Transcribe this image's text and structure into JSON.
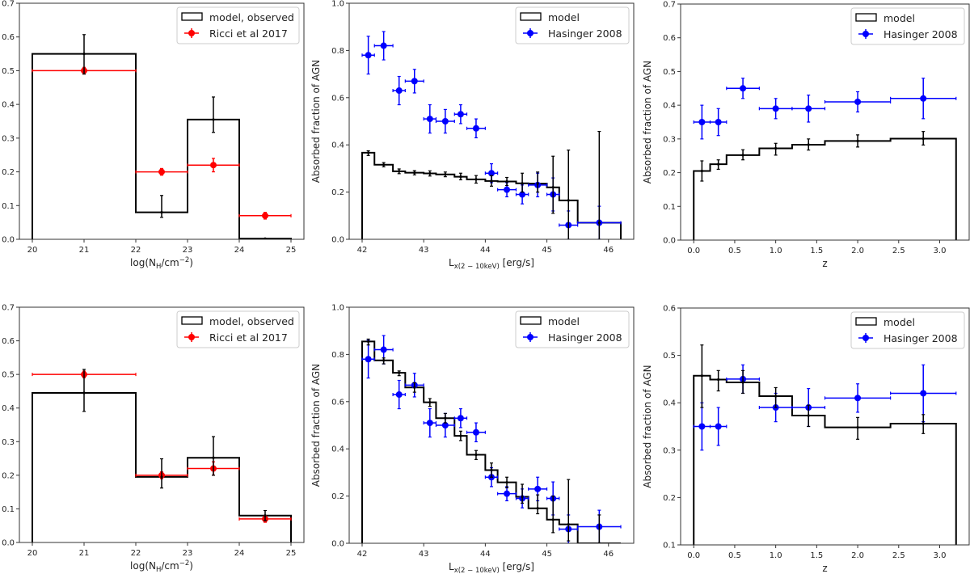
{
  "chart_data": [
    {
      "type": "bar",
      "id": "nh-top",
      "xlabel_parts": [
        [
          "log(N",
          "n"
        ],
        [
          "H",
          "sub"
        ],
        [
          "/cm",
          "n"
        ],
        [
          "−2",
          "sup"
        ],
        [
          ")",
          "n"
        ]
      ],
      "ylabel": "",
      "xlim": [
        19.75,
        25.25
      ],
      "ylim": [
        0,
        0.7
      ],
      "xticks": [
        20,
        21,
        22,
        23,
        24,
        25
      ],
      "xtick_labels": [
        "20",
        "21",
        "22",
        "23",
        "24",
        "25"
      ],
      "yticks": [
        0,
        0.1,
        0.2,
        0.3,
        0.4,
        0.5,
        0.6,
        0.7
      ],
      "ytick_labels": [
        "0.0",
        "0.1",
        "0.2",
        "0.3",
        "0.4",
        "0.5",
        "0.6",
        "0.7"
      ],
      "legend": {
        "placement": "top-right",
        "entries": [
          "model, observed",
          "Ricci et al 2017"
        ]
      },
      "model": {
        "name": "model, observed",
        "edges": [
          20,
          22,
          23,
          24,
          25
        ],
        "values": [
          0.55,
          0.08,
          0.355,
          0.002
        ],
        "err_x": [
          21,
          22.5,
          23.5,
          24.5
        ],
        "err_lo": [
          0.49,
          0.065,
          0.317,
          0.0
        ],
        "err_hi": [
          0.607,
          0.13,
          0.422,
          0.003
        ]
      },
      "obs": {
        "name": "Ricci et al 2017",
        "color": "#ff0000",
        "x": [
          21,
          22.5,
          23.5,
          24.5
        ],
        "xerr": [
          1,
          0.5,
          0.5,
          0.5
        ],
        "y": [
          0.5,
          0.2,
          0.22,
          0.07
        ],
        "yerr": [
          0.01,
          0.01,
          0.02,
          0.01
        ]
      }
    },
    {
      "type": "bar",
      "id": "lx-top",
      "xlabel_parts": [
        [
          "L",
          "n"
        ],
        [
          "x(2 − 10keV)",
          "sub"
        ],
        [
          " [erg/s]",
          "n"
        ]
      ],
      "ylabel": "Absorbed fraction of AGN",
      "xlim": [
        41.79,
        46.41
      ],
      "ylim": [
        0,
        1.0
      ],
      "xticks": [
        42,
        43,
        44,
        45,
        46
      ],
      "xtick_labels": [
        "42",
        "43",
        "44",
        "45",
        "46"
      ],
      "yticks": [
        0,
        0.2,
        0.4,
        0.6,
        0.8,
        1.0
      ],
      "ytick_labels": [
        "0.0",
        "0.2",
        "0.4",
        "0.6",
        "0.8",
        "1.0"
      ],
      "legend": {
        "placement": "top-right",
        "entries": [
          "model",
          "Hasinger 2008"
        ]
      },
      "model": {
        "name": "model",
        "edges": [
          42,
          42.2,
          42.5,
          42.7,
          43,
          43.2,
          43.5,
          43.7,
          44,
          44.2,
          44.5,
          44.7,
          45,
          45.2,
          45.5,
          46.2
        ],
        "values": [
          0.367,
          0.316,
          0.288,
          0.282,
          0.279,
          0.275,
          0.265,
          0.254,
          0.247,
          0.245,
          0.237,
          0.236,
          0.22,
          0.165,
          0.07
        ],
        "err_x": [
          42.1,
          42.35,
          42.6,
          42.85,
          43.1,
          43.35,
          43.6,
          43.85,
          44.1,
          44.35,
          44.6,
          44.85,
          45.1,
          45.35,
          45.85
        ],
        "err_lo": [
          0.355,
          0.307,
          0.278,
          0.273,
          0.268,
          0.265,
          0.252,
          0.238,
          0.225,
          0.228,
          0.2,
          0.2,
          0.11,
          0,
          0
        ],
        "err_hi": [
          0.375,
          0.325,
          0.298,
          0.291,
          0.29,
          0.285,
          0.28,
          0.27,
          0.27,
          0.262,
          0.28,
          0.285,
          0.352,
          0.378,
          0.457
        ]
      },
      "obs": {
        "name": "Hasinger 2008",
        "color": "#0000ff",
        "x": [
          42.1,
          42.35,
          42.6,
          42.85,
          43.1,
          43.35,
          43.6,
          43.85,
          44.1,
          44.35,
          44.6,
          44.85,
          45.1,
          45.35,
          45.85
        ],
        "xerr": [
          0.1,
          0.15,
          0.1,
          0.15,
          0.1,
          0.15,
          0.1,
          0.15,
          0.1,
          0.15,
          0.1,
          0.15,
          0.1,
          0.15,
          0.35
        ],
        "y": [
          0.78,
          0.82,
          0.63,
          0.67,
          0.51,
          0.5,
          0.53,
          0.47,
          0.28,
          0.21,
          0.19,
          0.23,
          0.19,
          0.06,
          0.07
        ],
        "yerr": [
          0.08,
          0.06,
          0.06,
          0.05,
          0.06,
          0.05,
          0.04,
          0.04,
          0.04,
          0.03,
          0.04,
          0.05,
          0.07,
          0.06,
          0.07
        ]
      }
    },
    {
      "type": "bar",
      "id": "z-top",
      "xlabel_parts": [
        [
          "z",
          "n"
        ]
      ],
      "ylabel": "Absorbed fraction of AGN",
      "xlim": [
        -0.16,
        3.36
      ],
      "ylim": [
        0,
        0.7
      ],
      "xticks": [
        0,
        0.5,
        1,
        1.5,
        2,
        2.5,
        3
      ],
      "xtick_labels": [
        "0.0",
        "0.5",
        "1.0",
        "1.5",
        "2.0",
        "2.5",
        "3.0"
      ],
      "yticks": [
        0,
        0.1,
        0.2,
        0.3,
        0.4,
        0.5,
        0.6,
        0.7
      ],
      "ytick_labels": [
        "0.0",
        "0.1",
        "0.2",
        "0.3",
        "0.4",
        "0.5",
        "0.6",
        "0.7"
      ],
      "legend": {
        "placement": "top-right",
        "entries": [
          "model",
          "Hasinger 2008"
        ]
      },
      "model": {
        "name": "model",
        "edges": [
          0,
          0.2,
          0.4,
          0.8,
          1.2,
          1.6,
          2.4,
          3.2
        ],
        "values": [
          0.205,
          0.225,
          0.252,
          0.272,
          0.283,
          0.294,
          0.301
        ],
        "err_x": [
          0.1,
          0.3,
          0.6,
          1.0,
          1.4,
          2.0,
          2.8
        ],
        "err_lo": [
          0.175,
          0.21,
          0.238,
          0.252,
          0.267,
          0.276,
          0.282
        ],
        "err_hi": [
          0.235,
          0.238,
          0.268,
          0.287,
          0.3,
          0.312,
          0.322
        ]
      },
      "obs": {
        "name": "Hasinger 2008",
        "color": "#0000ff",
        "x": [
          0.1,
          0.3,
          0.6,
          1.0,
          1.4,
          2.0,
          2.8
        ],
        "xerr": [
          0.1,
          0.1,
          0.2,
          0.2,
          0.2,
          0.4,
          0.4
        ],
        "y": [
          0.35,
          0.35,
          0.45,
          0.39,
          0.39,
          0.41,
          0.42
        ],
        "yerr": [
          0.05,
          0.04,
          0.03,
          0.03,
          0.04,
          0.03,
          0.06
        ]
      }
    },
    {
      "type": "bar",
      "id": "nh-bottom",
      "xlabel_parts": [
        [
          "log(N",
          "n"
        ],
        [
          "H",
          "sub"
        ],
        [
          "/cm",
          "n"
        ],
        [
          "−2",
          "sup"
        ],
        [
          ")",
          "n"
        ]
      ],
      "ylabel": "",
      "xlim": [
        19.75,
        25.25
      ],
      "ylim": [
        0,
        0.7
      ],
      "xticks": [
        20,
        21,
        22,
        23,
        24,
        25
      ],
      "xtick_labels": [
        "20",
        "21",
        "22",
        "23",
        "24",
        "25"
      ],
      "yticks": [
        0,
        0.1,
        0.2,
        0.3,
        0.4,
        0.5,
        0.6,
        0.7
      ],
      "ytick_labels": [
        "0.0",
        "0.1",
        "0.2",
        "0.3",
        "0.4",
        "0.5",
        "0.6",
        "0.7"
      ],
      "legend": {
        "placement": "top-right",
        "entries": [
          "model, observed",
          "Ricci et al 2017"
        ]
      },
      "model": {
        "name": "model, observed",
        "edges": [
          20,
          22,
          23,
          24,
          25
        ],
        "values": [
          0.445,
          0.195,
          0.252,
          0.08
        ],
        "err_x": [
          21,
          22.5,
          23.5,
          24.5
        ],
        "err_lo": [
          0.39,
          0.162,
          0.2,
          0.065
        ],
        "err_hi": [
          0.515,
          0.249,
          0.315,
          0.095
        ]
      },
      "obs": {
        "name": "Ricci et al 2017",
        "color": "#ff0000",
        "x": [
          21,
          22.5,
          23.5,
          24.5
        ],
        "xerr": [
          1,
          0.5,
          0.5,
          0.5
        ],
        "y": [
          0.5,
          0.2,
          0.22,
          0.07
        ],
        "yerr": [
          0.01,
          0.01,
          0.02,
          0.01
        ]
      }
    },
    {
      "type": "bar",
      "id": "lx-bottom",
      "xlabel_parts": [
        [
          "L",
          "n"
        ],
        [
          "x(2 − 10keV)",
          "sub"
        ],
        [
          " [erg/s]",
          "n"
        ]
      ],
      "ylabel": "Absorbed fraction of AGN",
      "xlim": [
        41.79,
        46.41
      ],
      "ylim": [
        0,
        1.0
      ],
      "xticks": [
        42,
        43,
        44,
        45,
        46
      ],
      "xtick_labels": [
        "42",
        "43",
        "44",
        "45",
        "46"
      ],
      "yticks": [
        0,
        0.2,
        0.4,
        0.6,
        0.8,
        1.0
      ],
      "ytick_labels": [
        "0.0",
        "0.2",
        "0.4",
        "0.6",
        "0.8",
        "1.0"
      ],
      "legend": {
        "placement": "top-right",
        "entries": [
          "model",
          "Hasinger 2008"
        ]
      },
      "model": {
        "name": "model",
        "edges": [
          42,
          42.2,
          42.5,
          42.7,
          43,
          43.2,
          43.5,
          43.7,
          44,
          44.2,
          44.5,
          44.7,
          45,
          45.2,
          45.5,
          46.2
        ],
        "values": [
          0.855,
          0.775,
          0.722,
          0.66,
          0.597,
          0.53,
          0.455,
          0.375,
          0.31,
          0.258,
          0.197,
          0.148,
          0.1,
          0.08,
          0.0
        ],
        "err_x": [
          42.1,
          42.35,
          42.6,
          42.85,
          43.1,
          43.35,
          43.6,
          43.85,
          44.1,
          44.35,
          44.6,
          44.85,
          45.1,
          45.35,
          45.85
        ],
        "err_lo": [
          0.84,
          0.76,
          0.71,
          0.64,
          0.58,
          0.51,
          0.435,
          0.355,
          0.28,
          0.235,
          0.17,
          0.125,
          0.045,
          0.01,
          0
        ],
        "err_hi": [
          0.865,
          0.785,
          0.73,
          0.68,
          0.613,
          0.55,
          0.475,
          0.393,
          0.34,
          0.28,
          0.25,
          0.205,
          0.2,
          0.27,
          0.12
        ]
      },
      "obs": {
        "name": "Hasinger 2008",
        "color": "#0000ff",
        "x": [
          42.1,
          42.35,
          42.6,
          42.85,
          43.1,
          43.35,
          43.6,
          43.85,
          44.1,
          44.35,
          44.6,
          44.85,
          45.1,
          45.35,
          45.85
        ],
        "xerr": [
          0.1,
          0.15,
          0.1,
          0.15,
          0.1,
          0.15,
          0.1,
          0.15,
          0.1,
          0.15,
          0.1,
          0.15,
          0.1,
          0.15,
          0.35
        ],
        "y": [
          0.78,
          0.82,
          0.63,
          0.67,
          0.51,
          0.5,
          0.53,
          0.47,
          0.28,
          0.21,
          0.19,
          0.23,
          0.19,
          0.06,
          0.07
        ],
        "yerr": [
          0.08,
          0.06,
          0.06,
          0.05,
          0.06,
          0.05,
          0.04,
          0.04,
          0.04,
          0.03,
          0.04,
          0.05,
          0.07,
          0.06,
          0.07
        ]
      }
    },
    {
      "type": "bar",
      "id": "z-bottom",
      "xlabel_parts": [
        [
          "z",
          "n"
        ]
      ],
      "ylabel": "Absorbed fraction of AGN",
      "xlim": [
        -0.16,
        3.36
      ],
      "ylim": [
        0.1,
        0.6
      ],
      "xticks": [
        0,
        0.5,
        1,
        1.5,
        2,
        2.5,
        3
      ],
      "xtick_labels": [
        "0.0",
        "0.5",
        "1.0",
        "1.5",
        "2.0",
        "2.5",
        "3.0"
      ],
      "yticks": [
        0.1,
        0.2,
        0.3,
        0.4,
        0.5,
        0.6
      ],
      "ytick_labels": [
        "0.1",
        "0.2",
        "0.3",
        "0.4",
        "0.5",
        "0.6"
      ],
      "legend": {
        "placement": "top-right",
        "entries": [
          "model",
          "Hasinger 2008"
        ]
      },
      "model": {
        "name": "model",
        "edges": [
          0,
          0.2,
          0.4,
          0.8,
          1.2,
          1.6,
          2.4,
          3.2
        ],
        "values": [
          0.457,
          0.449,
          0.443,
          0.414,
          0.373,
          0.348,
          0.356
        ],
        "err_x": [
          0.1,
          0.3,
          0.6,
          1.0,
          1.4,
          2.0,
          2.8
        ],
        "err_lo": [
          0.39,
          0.425,
          0.42,
          0.39,
          0.35,
          0.323,
          0.335
        ],
        "err_hi": [
          0.522,
          0.468,
          0.468,
          0.432,
          0.395,
          0.369,
          0.375
        ]
      },
      "obs": {
        "name": "Hasinger 2008",
        "color": "#0000ff",
        "x": [
          0.1,
          0.3,
          0.6,
          1.0,
          1.4,
          2.0,
          2.8
        ],
        "xerr": [
          0.1,
          0.1,
          0.2,
          0.2,
          0.2,
          0.4,
          0.4
        ],
        "y": [
          0.35,
          0.35,
          0.45,
          0.39,
          0.39,
          0.41,
          0.42
        ],
        "yerr": [
          0.05,
          0.04,
          0.03,
          0.03,
          0.04,
          0.03,
          0.06
        ]
      }
    }
  ]
}
